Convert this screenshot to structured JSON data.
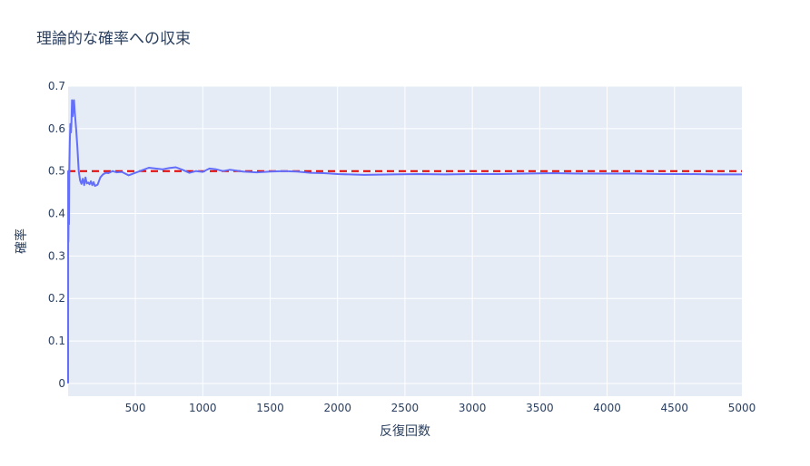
{
  "chart_data": {
    "type": "line",
    "title": "理論的な確率への収束",
    "xlabel": "反復回数",
    "ylabel": "確率",
    "xlim": [
      1,
      5000
    ],
    "ylim": [
      -0.03,
      0.7
    ],
    "x_ticks": [
      500,
      1000,
      1500,
      2000,
      2500,
      3000,
      3500,
      4000,
      4500,
      5000
    ],
    "y_ticks": [
      0,
      0.1,
      0.2,
      0.3,
      0.4,
      0.5,
      0.6,
      0.7
    ],
    "y_tick_labels": [
      "0",
      "0.1",
      "0.2",
      "0.3",
      "0.4",
      "0.5",
      "0.6",
      "0.7"
    ],
    "grid": true,
    "reference_line": {
      "y": 0.5,
      "style": "dashed",
      "color": "#e00000"
    },
    "series": [
      {
        "color": "#636efa",
        "x": [
          1,
          2,
          3,
          5,
          8,
          10,
          14,
          18,
          22,
          26,
          30,
          35,
          40,
          45,
          50,
          60,
          70,
          80,
          90,
          100,
          110,
          120,
          130,
          140,
          150,
          160,
          170,
          180,
          190,
          200,
          220,
          240,
          260,
          280,
          300,
          330,
          360,
          400,
          450,
          500,
          550,
          600,
          650,
          700,
          750,
          800,
          850,
          900,
          950,
          1000,
          1050,
          1100,
          1150,
          1200,
          1300,
          1400,
          1500,
          1600,
          1700,
          1800,
          1900,
          2000,
          2200,
          2400,
          2600,
          2800,
          3000,
          3200,
          3400,
          3600,
          3800,
          4000,
          4200,
          4400,
          4600,
          4800,
          5000
        ],
        "values": [
          0,
          0.5,
          0.333,
          0.4,
          0.375,
          0.5,
          0.571,
          0.611,
          0.591,
          0.615,
          0.667,
          0.629,
          0.65,
          0.667,
          0.64,
          0.6,
          0.557,
          0.5,
          0.478,
          0.47,
          0.482,
          0.467,
          0.485,
          0.471,
          0.473,
          0.469,
          0.476,
          0.467,
          0.474,
          0.465,
          0.468,
          0.485,
          0.492,
          0.496,
          0.495,
          0.5,
          0.497,
          0.498,
          0.49,
          0.496,
          0.502,
          0.508,
          0.506,
          0.504,
          0.507,
          0.509,
          0.503,
          0.496,
          0.5,
          0.498,
          0.506,
          0.504,
          0.5,
          0.503,
          0.499,
          0.497,
          0.499,
          0.5,
          0.499,
          0.496,
          0.495,
          0.493,
          0.491,
          0.492,
          0.493,
          0.492,
          0.493,
          0.493,
          0.494,
          0.495,
          0.494,
          0.494,
          0.494,
          0.493,
          0.493,
          0.492,
          0.492
        ]
      }
    ]
  }
}
